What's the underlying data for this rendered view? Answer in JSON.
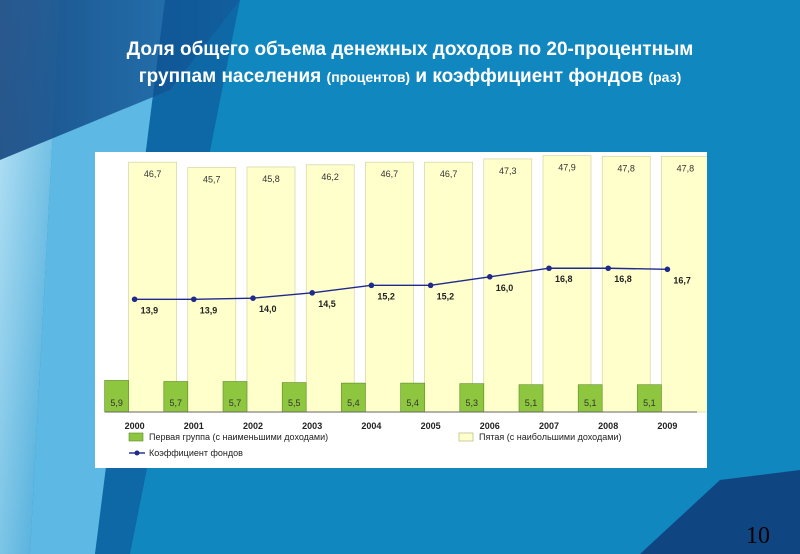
{
  "slide": {
    "title_line1": "Доля общего объема денежных доходов по 20-процентным",
    "title_line2_a": "группам населения",
    "title_line2_b": "(процентов)",
    "title_line2_c": "и коэффициент фондов",
    "title_line2_d": "(раз)",
    "page_number": "10"
  },
  "colors": {
    "background": "#1187c0",
    "bar_low": "#8ec63f",
    "bar_high": "#ffffcc",
    "line": "#1f2a8c"
  },
  "chart_data": {
    "type": "bar",
    "categories": [
      "2000",
      "2001",
      "2002",
      "2003",
      "2004",
      "2005",
      "2006",
      "2007",
      "2008",
      "2009"
    ],
    "series": [
      {
        "name": "Первая группа (с наименьшими доходами)",
        "kind": "bar",
        "values": [
          5.9,
          5.7,
          5.7,
          5.5,
          5.4,
          5.4,
          5.3,
          5.1,
          5.1,
          5.1
        ],
        "labels": [
          "5,9",
          "5,7",
          "5,7",
          "5,5",
          "5,4",
          "5,4",
          "5,3",
          "5,1",
          "5,1",
          "5,1"
        ]
      },
      {
        "name": "Пятая (с наибольшими доходами)",
        "kind": "bar",
        "values": [
          46.7,
          45.7,
          45.8,
          46.2,
          46.7,
          46.7,
          47.3,
          47.9,
          47.8,
          47.8
        ],
        "labels": [
          "46,7",
          "45,7",
          "45,8",
          "46,2",
          "46,7",
          "46,7",
          "47,3",
          "47,9",
          "47,8",
          "47,8"
        ]
      },
      {
        "name": "Коэффициент фондов",
        "kind": "line",
        "values": [
          13.9,
          13.9,
          14.0,
          14.5,
          15.2,
          15.2,
          16.0,
          16.8,
          16.8,
          16.7
        ],
        "labels": [
          "13,9",
          "13,9",
          "14,0",
          "14,5",
          "15,2",
          "15,2",
          "16,0",
          "16,8",
          "16,8",
          "16,7"
        ]
      }
    ],
    "title": "",
    "xlabel": "",
    "ylabel": "",
    "legend_position": "bottom"
  }
}
